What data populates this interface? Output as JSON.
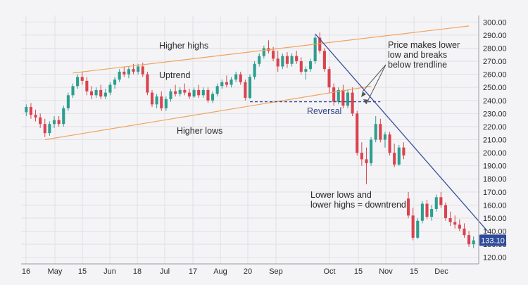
{
  "chart_data": {
    "type": "candlestick",
    "title": "",
    "xlabel": "",
    "ylabel": "",
    "ylim": [
      115,
      305
    ],
    "y_ticks": [
      "120.00",
      "130.00",
      "140.00",
      "150.00",
      "160.00",
      "170.00",
      "180.00",
      "190.00",
      "200.00",
      "210.00",
      "220.00",
      "230.00",
      "240.00",
      "250.00",
      "260.00",
      "270.00",
      "280.00",
      "290.00",
      "300.00"
    ],
    "x_ticks": [
      "16",
      "May",
      "15",
      "Jun",
      "18",
      "Jul",
      "17",
      "Aug",
      "20",
      "Sep",
      "Oct",
      "15",
      "Nov",
      "15",
      "Dec"
    ],
    "grid": true,
    "colors": {
      "up": "#2e9e8e",
      "down": "#d9434f",
      "channel": "#f2a25c",
      "downtrend": "#3b4f9e",
      "reversal": "#34448a",
      "badge": "#2f4a9a",
      "text": "#2a2a2a"
    },
    "last_price_label": "133.10",
    "candles": [
      {
        "o": 231,
        "h": 237,
        "l": 228,
        "c": 235
      },
      {
        "o": 235,
        "h": 238,
        "l": 226,
        "c": 229
      },
      {
        "o": 229,
        "h": 233,
        "l": 224,
        "c": 227
      },
      {
        "o": 227,
        "h": 230,
        "l": 219,
        "c": 222
      },
      {
        "o": 222,
        "h": 226,
        "l": 212,
        "c": 215
      },
      {
        "o": 215,
        "h": 224,
        "l": 213,
        "c": 222
      },
      {
        "o": 222,
        "h": 228,
        "l": 219,
        "c": 225
      },
      {
        "o": 225,
        "h": 228,
        "l": 220,
        "c": 222
      },
      {
        "o": 222,
        "h": 236,
        "l": 220,
        "c": 234
      },
      {
        "o": 234,
        "h": 246,
        "l": 232,
        "c": 244
      },
      {
        "o": 244,
        "h": 253,
        "l": 242,
        "c": 251
      },
      {
        "o": 251,
        "h": 260,
        "l": 249,
        "c": 258
      },
      {
        "o": 258,
        "h": 262,
        "l": 252,
        "c": 255
      },
      {
        "o": 255,
        "h": 258,
        "l": 244,
        "c": 247
      },
      {
        "o": 247,
        "h": 251,
        "l": 241,
        "c": 244
      },
      {
        "o": 244,
        "h": 250,
        "l": 242,
        "c": 248
      },
      {
        "o": 248,
        "h": 252,
        "l": 241,
        "c": 243
      },
      {
        "o": 243,
        "h": 249,
        "l": 241,
        "c": 246
      },
      {
        "o": 246,
        "h": 254,
        "l": 244,
        "c": 252
      },
      {
        "o": 252,
        "h": 258,
        "l": 249,
        "c": 256
      },
      {
        "o": 256,
        "h": 264,
        "l": 254,
        "c": 262
      },
      {
        "o": 262,
        "h": 266,
        "l": 258,
        "c": 260
      },
      {
        "o": 260,
        "h": 266,
        "l": 257,
        "c": 264
      },
      {
        "o": 264,
        "h": 268,
        "l": 260,
        "c": 262
      },
      {
        "o": 262,
        "h": 268,
        "l": 260,
        "c": 266
      },
      {
        "o": 266,
        "h": 269,
        "l": 258,
        "c": 260
      },
      {
        "o": 260,
        "h": 262,
        "l": 244,
        "c": 246
      },
      {
        "o": 246,
        "h": 248,
        "l": 235,
        "c": 237
      },
      {
        "o": 237,
        "h": 245,
        "l": 234,
        "c": 243
      },
      {
        "o": 243,
        "h": 247,
        "l": 232,
        "c": 234
      },
      {
        "o": 234,
        "h": 243,
        "l": 232,
        "c": 241
      },
      {
        "o": 241,
        "h": 249,
        "l": 239,
        "c": 247
      },
      {
        "o": 247,
        "h": 252,
        "l": 243,
        "c": 245
      },
      {
        "o": 245,
        "h": 250,
        "l": 243,
        "c": 248
      },
      {
        "o": 248,
        "h": 253,
        "l": 244,
        "c": 246
      },
      {
        "o": 246,
        "h": 249,
        "l": 241,
        "c": 243
      },
      {
        "o": 243,
        "h": 250,
        "l": 242,
        "c": 248
      },
      {
        "o": 248,
        "h": 252,
        "l": 242,
        "c": 244
      },
      {
        "o": 244,
        "h": 250,
        "l": 242,
        "c": 248
      },
      {
        "o": 248,
        "h": 250,
        "l": 238,
        "c": 240
      },
      {
        "o": 240,
        "h": 247,
        "l": 238,
        "c": 245
      },
      {
        "o": 245,
        "h": 253,
        "l": 243,
        "c": 251
      },
      {
        "o": 251,
        "h": 256,
        "l": 249,
        "c": 254
      },
      {
        "o": 254,
        "h": 259,
        "l": 250,
        "c": 252
      },
      {
        "o": 252,
        "h": 258,
        "l": 250,
        "c": 256
      },
      {
        "o": 256,
        "h": 262,
        "l": 254,
        "c": 260
      },
      {
        "o": 260,
        "h": 262,
        "l": 252,
        "c": 254
      },
      {
        "o": 254,
        "h": 256,
        "l": 240,
        "c": 242
      },
      {
        "o": 242,
        "h": 260,
        "l": 241,
        "c": 258
      },
      {
        "o": 258,
        "h": 270,
        "l": 256,
        "c": 268
      },
      {
        "o": 268,
        "h": 276,
        "l": 266,
        "c": 274
      },
      {
        "o": 274,
        "h": 282,
        "l": 272,
        "c": 280
      },
      {
        "o": 280,
        "h": 286,
        "l": 276,
        "c": 278
      },
      {
        "o": 278,
        "h": 281,
        "l": 270,
        "c": 272
      },
      {
        "o": 272,
        "h": 278,
        "l": 262,
        "c": 266
      },
      {
        "o": 266,
        "h": 276,
        "l": 264,
        "c": 274
      },
      {
        "o": 274,
        "h": 277,
        "l": 265,
        "c": 268
      },
      {
        "o": 268,
        "h": 276,
        "l": 266,
        "c": 274
      },
      {
        "o": 274,
        "h": 278,
        "l": 268,
        "c": 270
      },
      {
        "o": 270,
        "h": 273,
        "l": 260,
        "c": 262
      },
      {
        "o": 262,
        "h": 266,
        "l": 256,
        "c": 264
      },
      {
        "o": 264,
        "h": 272,
        "l": 262,
        "c": 270
      },
      {
        "o": 270,
        "h": 290,
        "l": 268,
        "c": 288
      },
      {
        "o": 288,
        "h": 292,
        "l": 276,
        "c": 278
      },
      {
        "o": 278,
        "h": 280,
        "l": 262,
        "c": 264
      },
      {
        "o": 264,
        "h": 266,
        "l": 246,
        "c": 250
      },
      {
        "o": 250,
        "h": 253,
        "l": 236,
        "c": 239
      },
      {
        "o": 239,
        "h": 250,
        "l": 237,
        "c": 248
      },
      {
        "o": 248,
        "h": 252,
        "l": 234,
        "c": 236
      },
      {
        "o": 236,
        "h": 248,
        "l": 234,
        "c": 246
      },
      {
        "o": 246,
        "h": 250,
        "l": 228,
        "c": 230
      },
      {
        "o": 230,
        "h": 232,
        "l": 198,
        "c": 200
      },
      {
        "o": 200,
        "h": 208,
        "l": 190,
        "c": 195
      },
      {
        "o": 195,
        "h": 204,
        "l": 176,
        "c": 192
      },
      {
        "o": 192,
        "h": 212,
        "l": 190,
        "c": 210
      },
      {
        "o": 210,
        "h": 228,
        "l": 208,
        "c": 222
      },
      {
        "o": 222,
        "h": 226,
        "l": 208,
        "c": 210
      },
      {
        "o": 210,
        "h": 216,
        "l": 204,
        "c": 214
      },
      {
        "o": 214,
        "h": 216,
        "l": 198,
        "c": 200
      },
      {
        "o": 200,
        "h": 207,
        "l": 189,
        "c": 191
      },
      {
        "o": 191,
        "h": 206,
        "l": 190,
        "c": 204
      },
      {
        "o": 204,
        "h": 208,
        "l": 195,
        "c": 198
      },
      {
        "o": 165,
        "h": 170,
        "l": 150,
        "c": 152
      },
      {
        "o": 152,
        "h": 158,
        "l": 133,
        "c": 135
      },
      {
        "o": 135,
        "h": 150,
        "l": 134,
        "c": 148
      },
      {
        "o": 148,
        "h": 163,
        "l": 146,
        "c": 161
      },
      {
        "o": 161,
        "h": 164,
        "l": 149,
        "c": 151
      },
      {
        "o": 151,
        "h": 160,
        "l": 148,
        "c": 157
      },
      {
        "o": 157,
        "h": 168,
        "l": 155,
        "c": 166
      },
      {
        "o": 166,
        "h": 170,
        "l": 158,
        "c": 160
      },
      {
        "o": 160,
        "h": 162,
        "l": 148,
        "c": 150
      },
      {
        "o": 150,
        "h": 155,
        "l": 144,
        "c": 147
      },
      {
        "o": 147,
        "h": 152,
        "l": 142,
        "c": 145
      },
      {
        "o": 145,
        "h": 149,
        "l": 140,
        "c": 142
      },
      {
        "o": 142,
        "h": 146,
        "l": 135,
        "c": 137
      },
      {
        "o": 137,
        "h": 140,
        "l": 128,
        "c": 130
      },
      {
        "o": 130,
        "h": 136,
        "l": 127,
        "c": 133
      }
    ],
    "annotations": {
      "higher_highs": "Higher highs",
      "uptrend": "Uptrend",
      "higher_lows": "Higher lows",
      "reversal": "Reversal",
      "price_breaks_1": "Price makes lower",
      "price_breaks_2": "low and breaks",
      "price_breaks_3": "below trendline",
      "lower_lows_1": "Lower lows and",
      "lower_lows_2": "lower highs = downtrend"
    },
    "trendlines": {
      "channel_upper": [
        {
          "i": 10,
          "p": 261
        },
        {
          "i": 95,
          "p": 297
        }
      ],
      "channel_lower": [
        {
          "i": 4,
          "p": 210
        },
        {
          "i": 74,
          "p": 251
        }
      ],
      "downtrend": [
        {
          "i": 62,
          "p": 291
        },
        {
          "i": 99,
          "p": 140
        }
      ],
      "reversal_level": [
        {
          "i": 48,
          "p": 239
        },
        {
          "i": 76,
          "p": 239
        }
      ]
    }
  }
}
